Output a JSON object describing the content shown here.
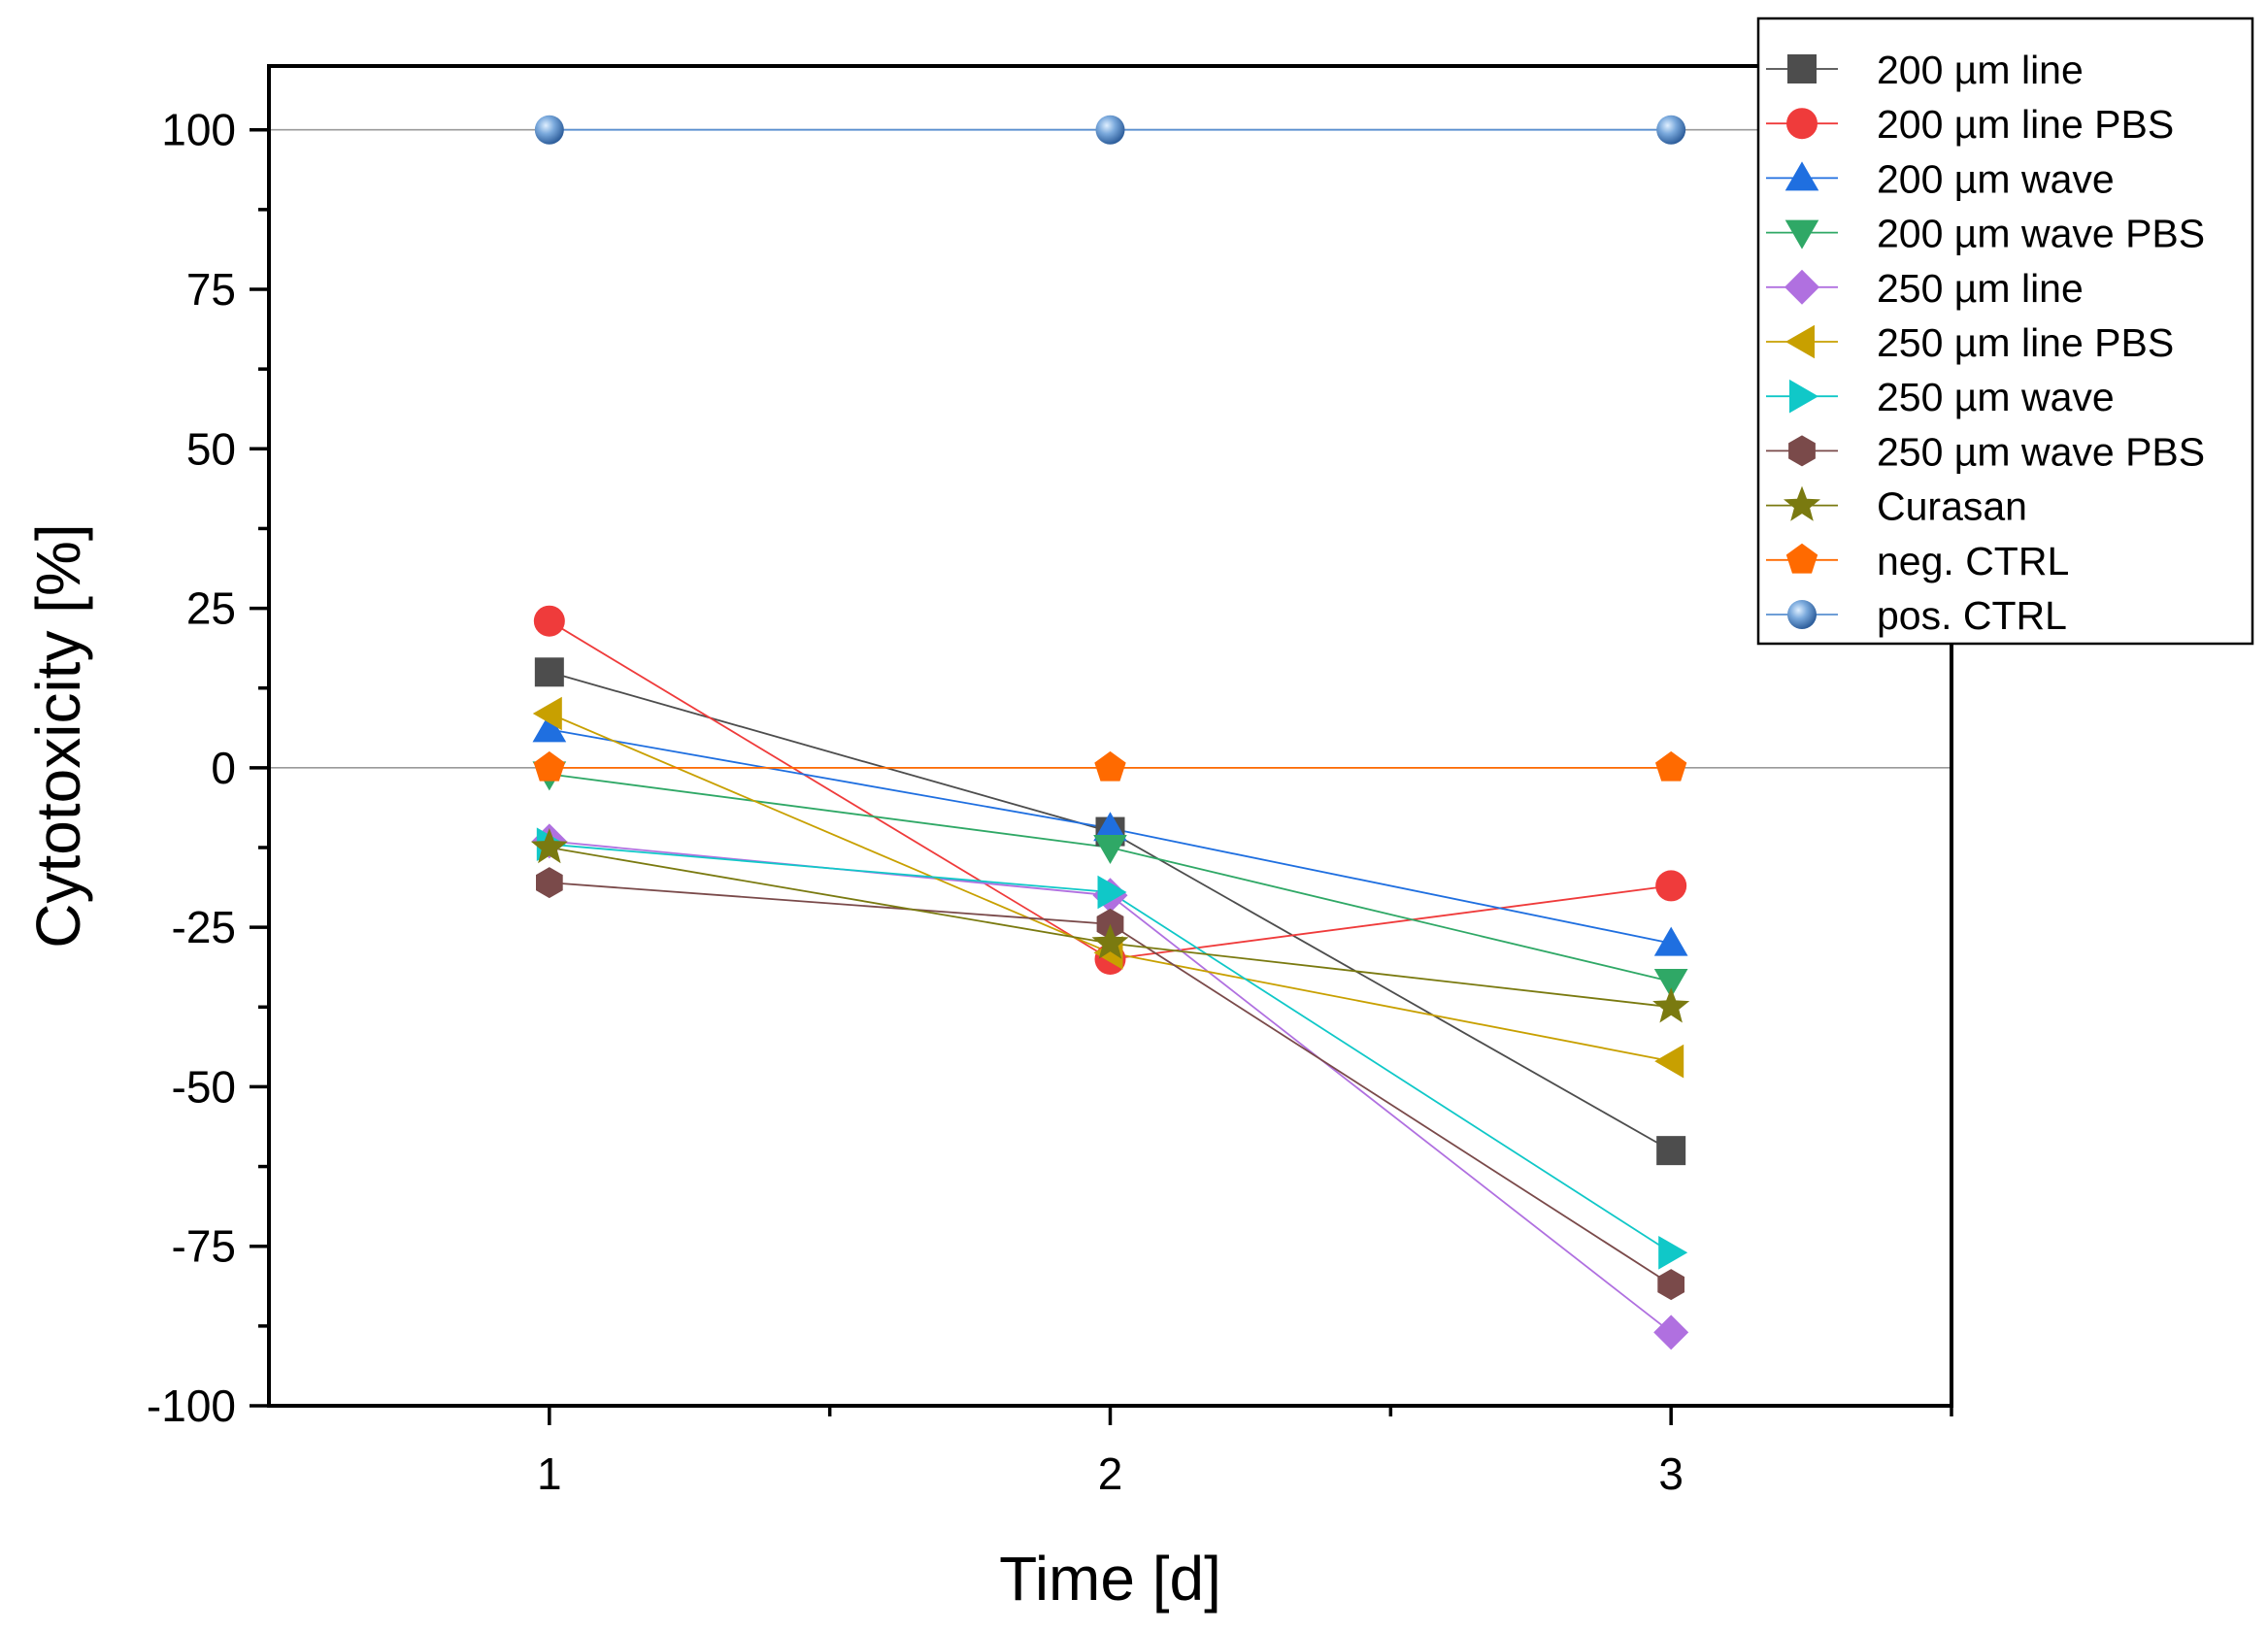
{
  "chart_data": {
    "type": "line",
    "title": "",
    "xlabel": "Time [d]",
    "ylabel": "Cytotoxicity [%]",
    "x": [
      1,
      2,
      3
    ],
    "xlim": [
      0.5,
      3.5
    ],
    "ylim": [
      -100,
      110
    ],
    "x_ticks": [
      "1",
      "2",
      "3"
    ],
    "y_ticks": [
      "100",
      "75",
      "50",
      "25",
      "0",
      "-25",
      "-50",
      "-75",
      "-100"
    ],
    "reference_lines": [
      100,
      0
    ],
    "grid": false,
    "legend_position": "top-right",
    "series": [
      {
        "name": "200 µm line",
        "values": [
          15,
          -10,
          -60
        ],
        "color": "#4d4d4d",
        "marker": "square"
      },
      {
        "name": "200 µm line PBS",
        "values": [
          23,
          -30,
          -18.5
        ],
        "color": "#ef3b3b",
        "marker": "circle"
      },
      {
        "name": "200 µm wave",
        "values": [
          6,
          -9.5,
          -27.5
        ],
        "color": "#1f6fe0",
        "marker": "triangle-up"
      },
      {
        "name": "200 µm wave PBS",
        "values": [
          -1,
          -12.5,
          -33.5
        ],
        "color": "#2fa866",
        "marker": "triangle-down"
      },
      {
        "name": "250 µm line",
        "values": [
          -11.5,
          -20,
          -88.5
        ],
        "color": "#b070e0",
        "marker": "diamond"
      },
      {
        "name": "250 µm line PBS",
        "values": [
          8.5,
          -29,
          -46
        ],
        "color": "#c8a000",
        "marker": "triangle-left"
      },
      {
        "name": "250 µm wave",
        "values": [
          -12,
          -19.5,
          -76
        ],
        "color": "#10c8c8",
        "marker": "triangle-right"
      },
      {
        "name": "250 µm wave PBS",
        "values": [
          -18,
          -24.5,
          -81
        ],
        "color": "#7a4a4a",
        "marker": "hexagon"
      },
      {
        "name": "Curasan",
        "values": [
          -12.5,
          -27.5,
          -37.5
        ],
        "color": "#7a7a10",
        "marker": "star"
      },
      {
        "name": "neg. CTRL",
        "values": [
          0,
          0,
          0
        ],
        "color": "#ff6a00",
        "marker": "pentagon"
      },
      {
        "name": "pos. CTRL",
        "values": [
          100,
          100,
          100
        ],
        "color": "#5a90d0",
        "marker": "sphere"
      }
    ]
  }
}
